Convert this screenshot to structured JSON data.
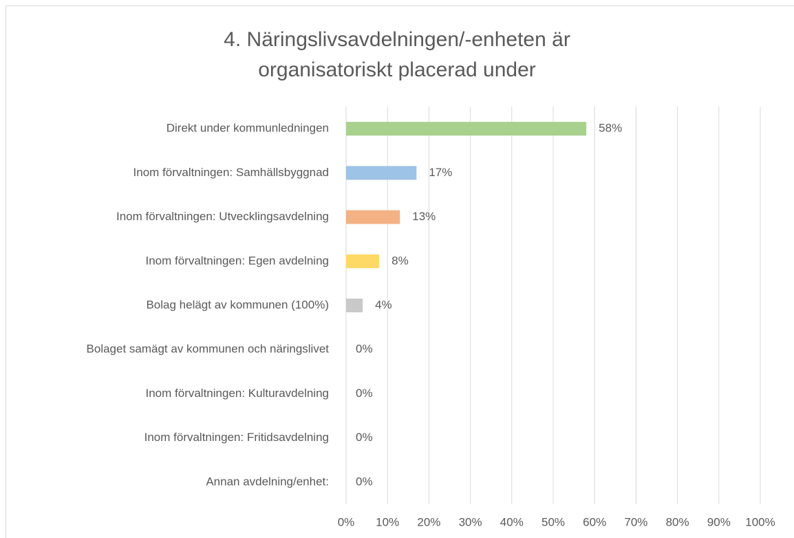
{
  "chart_data": {
    "type": "hbar",
    "title": "4. Näringslivsavdelningen/-enheten är organisatoriskt placerad under",
    "categories": [
      "Direkt under kommunledningen",
      "Inom förvaltningen: Samhällsbyggnad",
      "Inom förvaltningen: Utvecklingsavdelning",
      "Inom förvaltningen: Egen avdelning",
      "Bolag helägt av kommunen (100%)",
      "Bolaget samägt av kommunen och näringslivet",
      "Inom förvaltningen: Kulturavdelning",
      "Inom förvaltningen: Fritidsavdelning",
      "Annan avdelning/enhet:"
    ],
    "values": [
      58,
      17,
      13,
      8,
      4,
      0,
      0,
      0,
      0
    ],
    "value_labels": [
      "58%",
      "17%",
      "13%",
      "8%",
      "4%",
      "0%",
      "0%",
      "0%",
      "0%"
    ],
    "colors": [
      "#a9d18e",
      "#9dc3e6",
      "#f4b183",
      "#ffd966",
      "#c9c9c9",
      "#c9c9c9",
      "#c9c9c9",
      "#c9c9c9",
      "#c9c9c9"
    ],
    "xlim": [
      0,
      100
    ],
    "xticks": [
      {
        "value": 0,
        "label": "0%"
      },
      {
        "value": 10,
        "label": "10%"
      },
      {
        "value": 20,
        "label": "20%"
      },
      {
        "value": 30,
        "label": "30%"
      },
      {
        "value": 40,
        "label": "40%"
      },
      {
        "value": 50,
        "label": "50%"
      },
      {
        "value": 60,
        "label": "60%"
      },
      {
        "value": 70,
        "label": "70%"
      },
      {
        "value": 80,
        "label": "80%"
      },
      {
        "value": 90,
        "label": "90%"
      },
      {
        "value": 100,
        "label": "100%"
      }
    ],
    "grid": true
  }
}
